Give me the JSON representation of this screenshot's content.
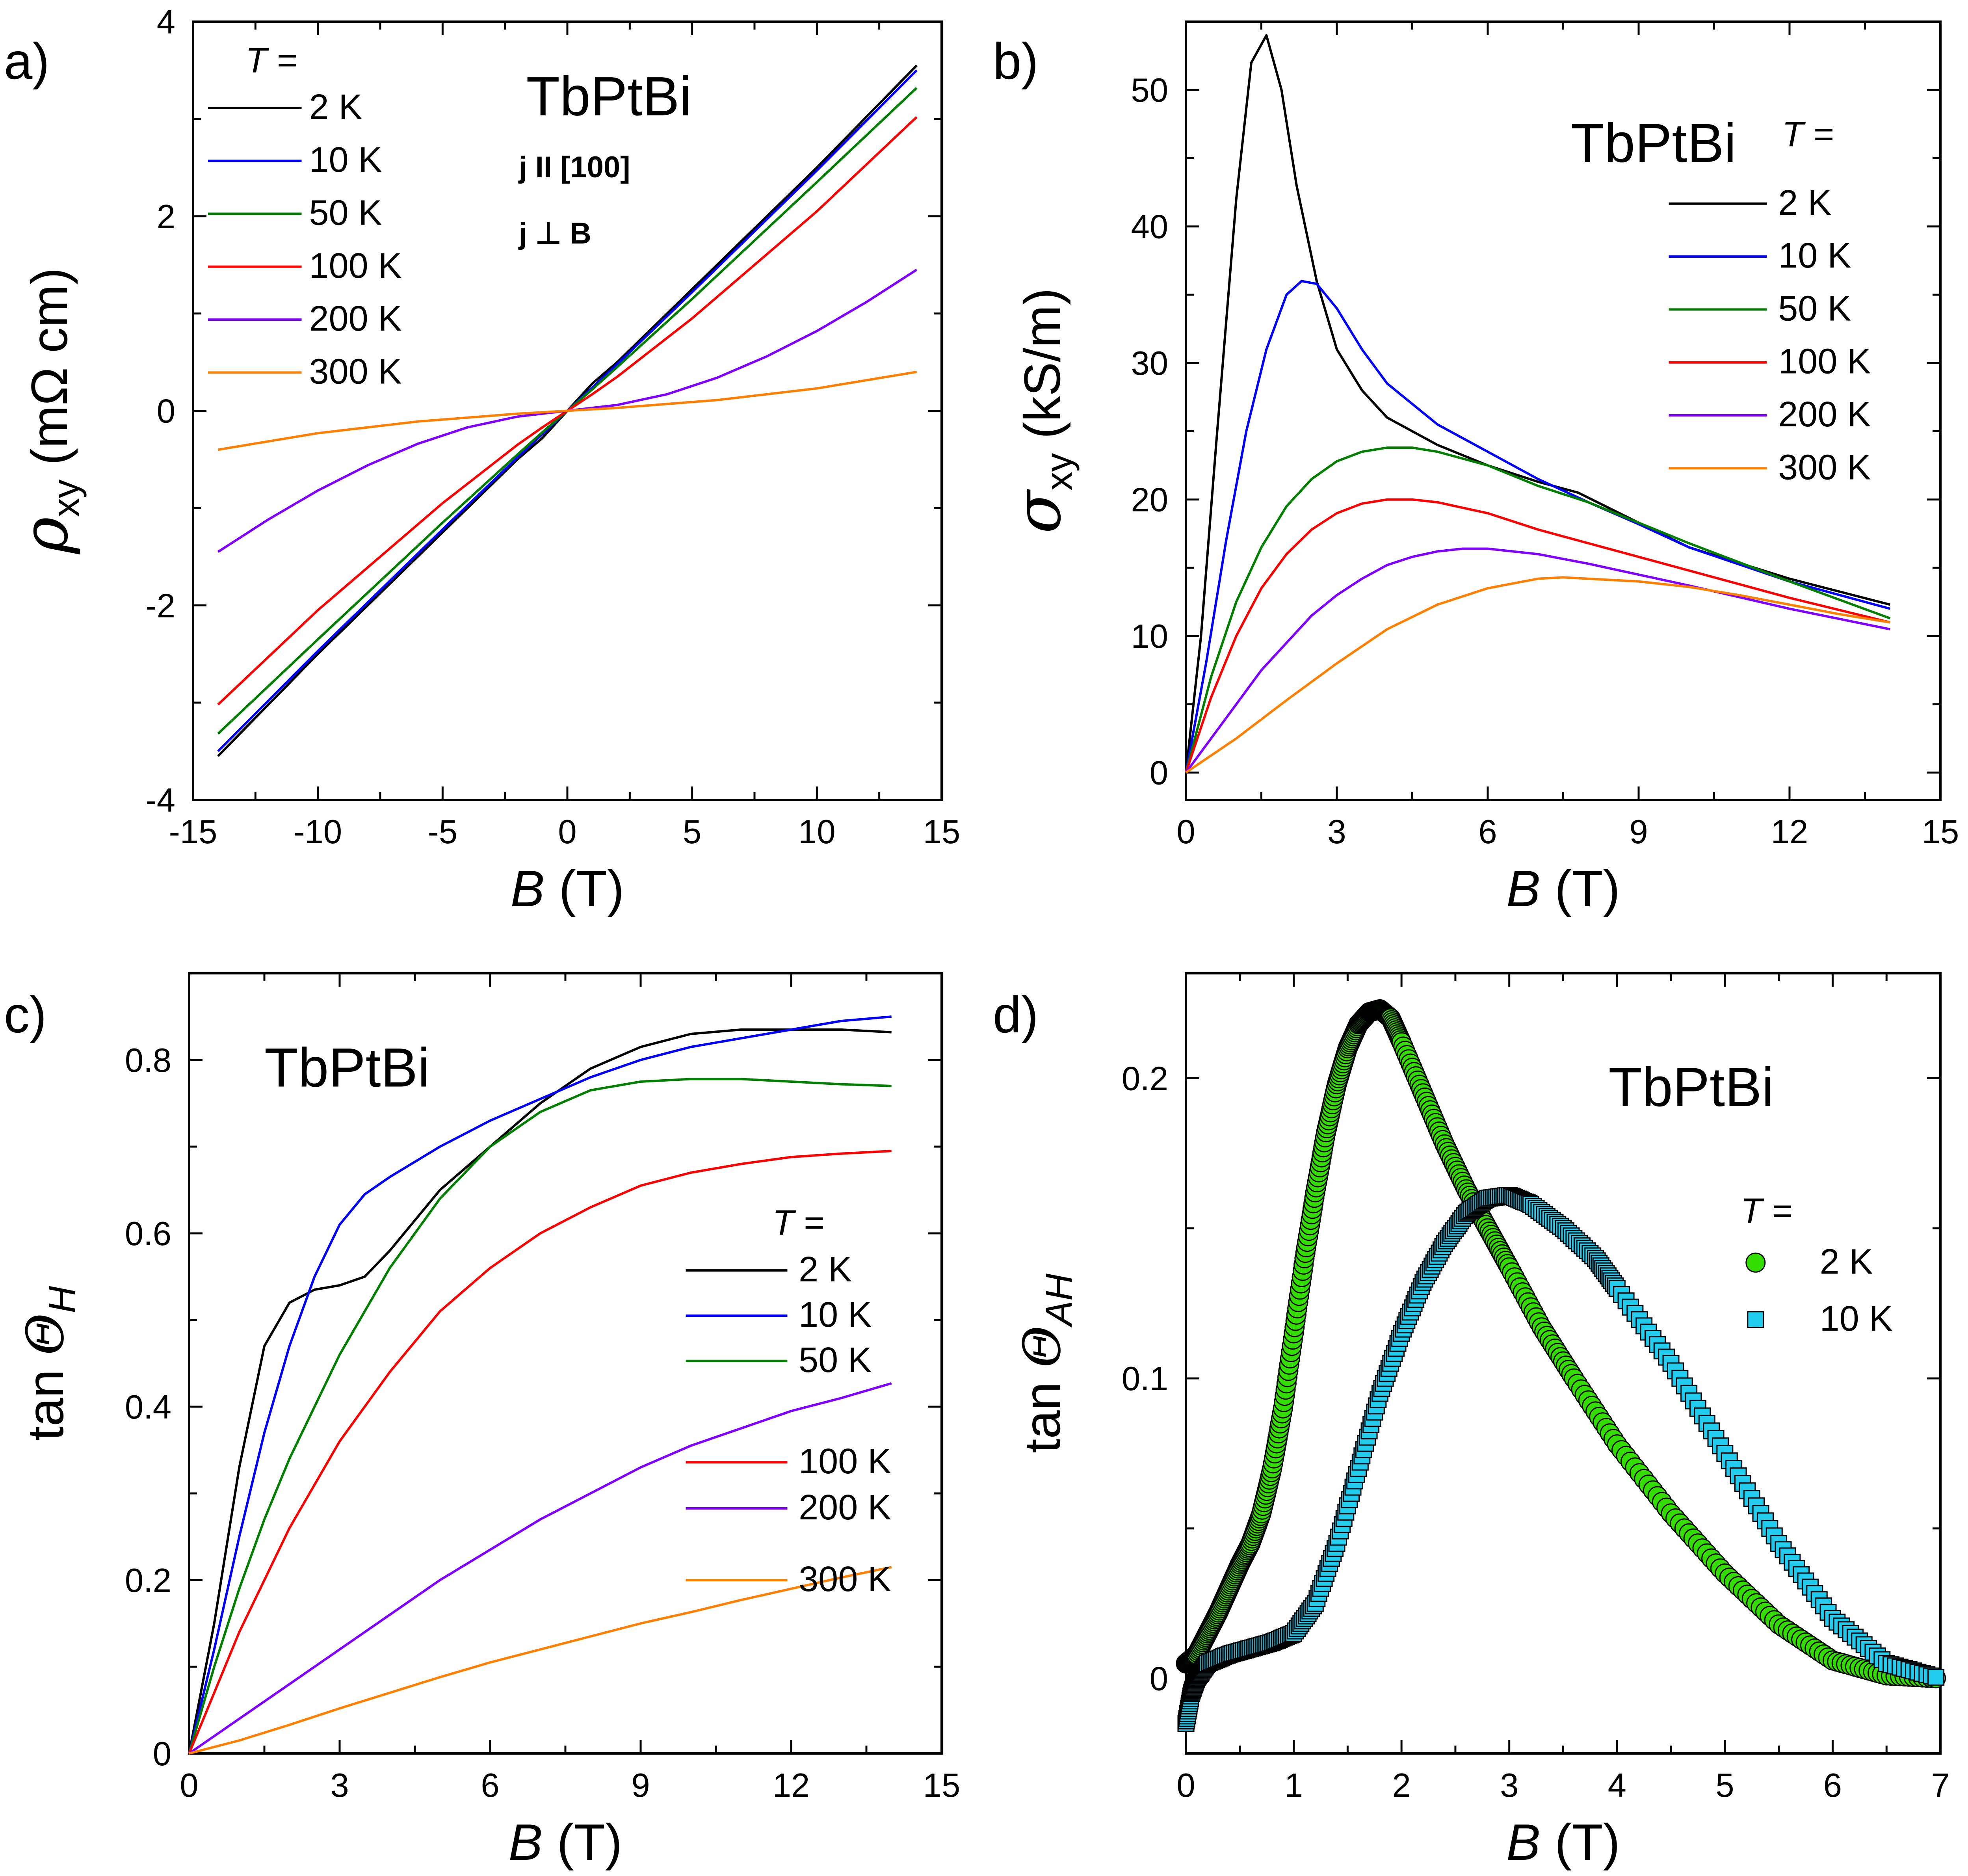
{
  "colors": {
    "2 K": "#000000",
    "10 K": "#0000ff",
    "50 K": "#007f00",
    "100 K": "#ff0000",
    "200 K": "#8000ff",
    "300 K": "#ff8000",
    "marker_2K": "#33dd00",
    "marker_10K": "#22ccee"
  },
  "chart_data": [
    {
      "panel": "a)",
      "type": "line",
      "title": "TbPtBi",
      "annotations": [
        "j II [100]",
        "j ⊥ B"
      ],
      "xlabel": "B (T)",
      "ylabel": "ρxy (mΩ cm)",
      "xlim": [
        -15,
        15
      ],
      "ylim": [
        -4,
        4
      ],
      "xticks": [
        -15,
        -10,
        -5,
        0,
        5,
        10,
        15
      ],
      "yticks": [
        -4,
        -2,
        0,
        2,
        4
      ],
      "legend_title": "T =",
      "legend_loc": "top-left",
      "series": [
        {
          "name": "2 K",
          "x": [
            -14,
            -10,
            -5,
            -2,
            -1,
            0,
            1,
            2,
            5,
            10,
            14
          ],
          "y": [
            -3.55,
            -2.5,
            -1.25,
            -0.5,
            -0.28,
            0,
            0.28,
            0.5,
            1.25,
            2.5,
            3.55
          ]
        },
        {
          "name": "10 K",
          "x": [
            -14,
            -10,
            -5,
            -2,
            -1,
            0,
            1,
            2,
            5,
            10,
            14
          ],
          "y": [
            -3.5,
            -2.47,
            -1.22,
            -0.48,
            -0.24,
            0,
            0.24,
            0.48,
            1.22,
            2.47,
            3.5
          ]
        },
        {
          "name": "50 K",
          "x": [
            -14,
            -10,
            -5,
            -2,
            -1,
            0,
            1,
            2,
            5,
            10,
            14
          ],
          "y": [
            -3.32,
            -2.35,
            -1.15,
            -0.45,
            -0.22,
            0,
            0.22,
            0.45,
            1.15,
            2.35,
            3.32
          ]
        },
        {
          "name": "100 K",
          "x": [
            -14,
            -10,
            -5,
            -2,
            -1,
            0,
            1,
            2,
            5,
            10,
            14
          ],
          "y": [
            -3.02,
            -2.05,
            -0.95,
            -0.35,
            -0.17,
            0,
            0.17,
            0.35,
            0.95,
            2.05,
            3.02
          ]
        },
        {
          "name": "200 K",
          "x": [
            -14,
            -12,
            -10,
            -8,
            -6,
            -4,
            -2,
            0,
            2,
            4,
            6,
            8,
            10,
            12,
            14
          ],
          "y": [
            -1.45,
            -1.12,
            -0.82,
            -0.56,
            -0.34,
            -0.17,
            -0.06,
            0,
            0.06,
            0.17,
            0.34,
            0.56,
            0.82,
            1.12,
            1.45
          ]
        },
        {
          "name": "300 K",
          "x": [
            -14,
            -10,
            -6,
            -2,
            0,
            2,
            6,
            10,
            14
          ],
          "y": [
            -0.4,
            -0.23,
            -0.11,
            -0.03,
            0,
            0.03,
            0.11,
            0.23,
            0.4
          ]
        }
      ]
    },
    {
      "panel": "b)",
      "type": "line",
      "title": "TbPtBi",
      "xlabel": "B (T)",
      "ylabel": "σxy (kS/m)",
      "xlim": [
        0,
        15
      ],
      "ylim": [
        -2,
        55
      ],
      "xticks": [
        0,
        3,
        6,
        9,
        12,
        15
      ],
      "yticks": [
        0,
        10,
        20,
        30,
        40,
        50
      ],
      "legend_title": "T =",
      "legend_loc": "right",
      "series": [
        {
          "name": "2 K",
          "x": [
            0,
            0.3,
            0.6,
            1.0,
            1.3,
            1.6,
            1.9,
            2.2,
            2.6,
            3.0,
            3.5,
            4.0,
            5.0,
            6.0,
            7.0,
            7.8,
            9.0,
            10.0,
            12.0,
            14.0
          ],
          "y": [
            0,
            10,
            24,
            42,
            52,
            54,
            50,
            43,
            36,
            31,
            28,
            26,
            24,
            22.5,
            21.3,
            20.5,
            18.3,
            16.5,
            14.2,
            12.3
          ]
        },
        {
          "name": "10 K",
          "x": [
            0,
            0.4,
            0.8,
            1.2,
            1.6,
            2.0,
            2.3,
            2.6,
            3.0,
            3.5,
            4.0,
            5.0,
            6.0,
            7.0,
            8.0,
            9.0,
            10.0,
            12.0,
            14.0
          ],
          "y": [
            0,
            8,
            17,
            25,
            31,
            35,
            36,
            35.8,
            34,
            31,
            28.5,
            25.5,
            23.5,
            21.5,
            19.8,
            18.2,
            16.5,
            14,
            12
          ]
        },
        {
          "name": "50 K",
          "x": [
            0,
            0.5,
            1,
            1.5,
            2,
            2.5,
            3,
            3.5,
            4,
            4.5,
            5,
            6,
            7,
            8,
            9,
            10,
            12,
            14
          ],
          "y": [
            0,
            7,
            12.5,
            16.5,
            19.5,
            21.5,
            22.8,
            23.5,
            23.8,
            23.8,
            23.5,
            22.5,
            21,
            19.8,
            18.3,
            16.8,
            14,
            11.3
          ]
        },
        {
          "name": "100 K",
          "x": [
            0,
            0.5,
            1,
            1.5,
            2,
            2.5,
            3,
            3.5,
            4,
            4.5,
            5,
            6,
            7,
            8,
            9,
            10,
            12,
            14
          ],
          "y": [
            0,
            5.5,
            10,
            13.5,
            16,
            17.8,
            19,
            19.7,
            20,
            20,
            19.8,
            19,
            17.8,
            16.8,
            15.8,
            14.8,
            12.8,
            11
          ]
        },
        {
          "name": "200 K",
          "x": [
            0,
            0.5,
            1,
            1.5,
            2,
            2.5,
            3,
            3.5,
            4,
            4.5,
            5,
            5.5,
            6,
            7,
            8,
            9,
            10,
            12,
            14
          ],
          "y": [
            0,
            2.5,
            5,
            7.5,
            9.5,
            11.5,
            13,
            14.2,
            15.2,
            15.8,
            16.2,
            16.4,
            16.4,
            16,
            15.3,
            14.5,
            13.7,
            12,
            10.5
          ]
        },
        {
          "name": "300 K",
          "x": [
            0,
            1,
            2,
            3,
            4,
            5,
            6,
            7,
            7.5,
            8,
            9,
            10,
            11,
            12,
            13,
            14
          ],
          "y": [
            0,
            2.5,
            5.3,
            8,
            10.5,
            12.3,
            13.5,
            14.2,
            14.3,
            14.2,
            14,
            13.6,
            13,
            12.3,
            11.6,
            11
          ]
        }
      ]
    },
    {
      "panel": "c)",
      "type": "line",
      "title": "TbPtBi",
      "xlabel": "B (T)",
      "ylabel": "tan ΘH",
      "xlim": [
        0,
        15
      ],
      "ylim": [
        0,
        0.9
      ],
      "xticks": [
        0,
        3,
        6,
        9,
        12,
        15
      ],
      "yticks": [
        0,
        0.2,
        0.4,
        0.6,
        0.8
      ],
      "legend_title": "T =",
      "legend_loc": "bottom-right",
      "series": [
        {
          "name": "2 K",
          "x": [
            0,
            0.5,
            1,
            1.5,
            2,
            2.5,
            3,
            3.5,
            4,
            5,
            6,
            7,
            8,
            9,
            10,
            11,
            12,
            13,
            14
          ],
          "y": [
            0,
            0.15,
            0.33,
            0.47,
            0.52,
            0.535,
            0.54,
            0.55,
            0.58,
            0.65,
            0.7,
            0.75,
            0.79,
            0.815,
            0.83,
            0.835,
            0.835,
            0.835,
            0.832
          ]
        },
        {
          "name": "10 K",
          "x": [
            0,
            0.5,
            1,
            1.5,
            2,
            2.5,
            3,
            3.5,
            4,
            5,
            6,
            7,
            8,
            9,
            10,
            11,
            12,
            13,
            14
          ],
          "y": [
            0,
            0.12,
            0.25,
            0.37,
            0.47,
            0.55,
            0.61,
            0.645,
            0.665,
            0.7,
            0.73,
            0.755,
            0.78,
            0.8,
            0.815,
            0.825,
            0.835,
            0.845,
            0.85
          ]
        },
        {
          "name": "50 K",
          "x": [
            0,
            0.5,
            1,
            1.5,
            2,
            3,
            4,
            5,
            6,
            7,
            8,
            9,
            10,
            11,
            12,
            13,
            14
          ],
          "y": [
            0,
            0.1,
            0.19,
            0.27,
            0.34,
            0.46,
            0.56,
            0.64,
            0.7,
            0.74,
            0.765,
            0.775,
            0.778,
            0.778,
            0.775,
            0.772,
            0.77
          ]
        },
        {
          "name": "100 K",
          "x": [
            0,
            0.5,
            1,
            1.5,
            2,
            3,
            4,
            5,
            6,
            7,
            8,
            9,
            10,
            11,
            12,
            13,
            14
          ],
          "y": [
            0,
            0.07,
            0.14,
            0.2,
            0.26,
            0.36,
            0.44,
            0.51,
            0.56,
            0.6,
            0.63,
            0.655,
            0.67,
            0.68,
            0.688,
            0.692,
            0.695
          ]
        },
        {
          "name": "200 K",
          "x": [
            0,
            1,
            2,
            3,
            4,
            5,
            6,
            7,
            8,
            9,
            10,
            11,
            12,
            13,
            14
          ],
          "y": [
            0,
            0.04,
            0.08,
            0.12,
            0.16,
            0.2,
            0.235,
            0.27,
            0.3,
            0.33,
            0.355,
            0.375,
            0.395,
            0.41,
            0.427
          ]
        },
        {
          "name": "300 K",
          "x": [
            0,
            1,
            2,
            3,
            4,
            5,
            6,
            7,
            8,
            9,
            10,
            11,
            12,
            13,
            14
          ],
          "y": [
            0,
            0.015,
            0.033,
            0.052,
            0.07,
            0.088,
            0.105,
            0.12,
            0.135,
            0.15,
            0.163,
            0.177,
            0.19,
            0.203,
            0.215
          ]
        }
      ]
    },
    {
      "panel": "d)",
      "type": "scatter",
      "title": "TbPtBi",
      "xlabel": "B (T)",
      "ylabel": "tan ΘAH",
      "xlim": [
        0,
        7
      ],
      "ylim": [
        -0.025,
        0.235
      ],
      "xticks": [
        0,
        1,
        2,
        3,
        4,
        5,
        6,
        7
      ],
      "yticks": [
        0,
        0.1,
        0.2
      ],
      "legend_title": "T =",
      "legend_loc": "right",
      "series": [
        {
          "name": "2 K",
          "marker": "circle",
          "x": [
            0,
            0.1,
            0.2,
            0.3,
            0.4,
            0.5,
            0.6,
            0.7,
            0.8,
            0.9,
            1.0,
            1.1,
            1.2,
            1.3,
            1.4,
            1.5,
            1.6,
            1.7,
            1.8,
            1.9,
            2.0,
            2.2,
            2.4,
            2.6,
            2.8,
            3.0,
            3.3,
            3.6,
            4.0,
            4.5,
            5.0,
            5.5,
            6.0,
            6.5,
            7.0
          ],
          "y": [
            0.005,
            0.008,
            0.015,
            0.022,
            0.03,
            0.038,
            0.045,
            0.055,
            0.07,
            0.09,
            0.115,
            0.14,
            0.162,
            0.182,
            0.198,
            0.21,
            0.218,
            0.222,
            0.223,
            0.22,
            0.212,
            0.195,
            0.178,
            0.163,
            0.15,
            0.137,
            0.117,
            0.1,
            0.078,
            0.055,
            0.035,
            0.018,
            0.006,
            0.001,
            0.0
          ]
        },
        {
          "name": "10 K",
          "marker": "square",
          "x": [
            0,
            0.05,
            0.1,
            0.2,
            0.4,
            0.6,
            0.8,
            1.0,
            1.2,
            1.4,
            1.6,
            1.8,
            2.0,
            2.2,
            2.4,
            2.6,
            2.8,
            3.0,
            3.2,
            3.5,
            3.8,
            4.0,
            4.5,
            5.0,
            5.5,
            6.0,
            6.5,
            7.0
          ],
          "y": [
            -0.015,
            -0.005,
            0.0,
            0.005,
            0.008,
            0.01,
            0.012,
            0.015,
            0.025,
            0.045,
            0.07,
            0.095,
            0.115,
            0.132,
            0.145,
            0.155,
            0.16,
            0.161,
            0.158,
            0.15,
            0.14,
            0.13,
            0.105,
            0.075,
            0.045,
            0.02,
            0.005,
            0.0
          ]
        }
      ]
    }
  ]
}
